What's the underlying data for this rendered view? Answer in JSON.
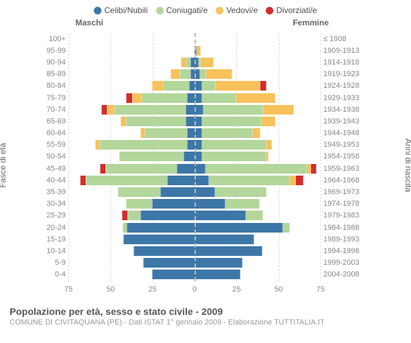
{
  "legend": [
    {
      "label": "Celibi/Nubili",
      "color": "#3d77a8"
    },
    {
      "label": "Coniugati/e",
      "color": "#b3d69b"
    },
    {
      "label": "Vedovi/e",
      "color": "#f7c15b"
    },
    {
      "label": "Divorziati/e",
      "color": "#d22d2d"
    }
  ],
  "headers": {
    "male": "Maschi",
    "female": "Femmine"
  },
  "axis_left_label": "Fasce di età",
  "axis_right_label": "Anni di nascita",
  "x_axis": {
    "max": 75,
    "ticks": [
      0,
      25,
      50,
      75
    ]
  },
  "footer": {
    "title": "Popolazione per età, sesso e stato civile - 2009",
    "subtitle": "COMUNE DI CIVITAQUANA (PE) - Dati ISTAT 1° gennaio 2009 - Elaborazione TUTTITALIA.IT"
  },
  "colors": {
    "celibi": "#3d77a8",
    "coniugati": "#b3d69b",
    "vedovi": "#f7c15b",
    "divorziati": "#d22d2d",
    "grid": "#dddddd",
    "center_line": "#bbbbbb",
    "text": "#888888"
  },
  "rows": [
    {
      "age": "100+",
      "birth": "≤ 1908",
      "m": {
        "cel": 0,
        "con": 0,
        "ved": 0,
        "div": 0
      },
      "f": {
        "cel": 0,
        "con": 0,
        "ved": 0,
        "div": 0
      }
    },
    {
      "age": "95-99",
      "birth": "1909-1913",
      "m": {
        "cel": 0,
        "con": 0,
        "ved": 0,
        "div": 0
      },
      "f": {
        "cel": 1,
        "con": 0,
        "ved": 2,
        "div": 0
      }
    },
    {
      "age": "90-94",
      "birth": "1914-1918",
      "m": {
        "cel": 2,
        "con": 2,
        "ved": 3,
        "div": 0
      },
      "f": {
        "cel": 2,
        "con": 1,
        "ved": 7,
        "div": 0
      }
    },
    {
      "age": "85-89",
      "birth": "1919-1923",
      "m": {
        "cel": 2,
        "con": 6,
        "ved": 5,
        "div": 0
      },
      "f": {
        "cel": 3,
        "con": 3,
        "ved": 15,
        "div": 0
      }
    },
    {
      "age": "80-84",
      "birth": "1924-1928",
      "m": {
        "cel": 3,
        "con": 15,
        "ved": 6,
        "div": 0
      },
      "f": {
        "cel": 4,
        "con": 8,
        "ved": 26,
        "div": 3
      }
    },
    {
      "age": "75-79",
      "birth": "1929-1933",
      "m": {
        "cel": 4,
        "con": 27,
        "ved": 5,
        "div": 3
      },
      "f": {
        "cel": 4,
        "con": 20,
        "ved": 23,
        "div": 0
      }
    },
    {
      "age": "70-74",
      "birth": "1934-1938",
      "m": {
        "cel": 5,
        "con": 42,
        "ved": 4,
        "div": 3
      },
      "f": {
        "cel": 5,
        "con": 35,
        "ved": 18,
        "div": 0
      }
    },
    {
      "age": "65-69",
      "birth": "1939-1943",
      "m": {
        "cel": 5,
        "con": 35,
        "ved": 3,
        "div": 0
      },
      "f": {
        "cel": 4,
        "con": 35,
        "ved": 8,
        "div": 0
      }
    },
    {
      "age": "60-64",
      "birth": "1944-1948",
      "m": {
        "cel": 4,
        "con": 25,
        "ved": 2,
        "div": 0
      },
      "f": {
        "cel": 4,
        "con": 30,
        "ved": 4,
        "div": 0
      }
    },
    {
      "age": "55-59",
      "birth": "1949-1953",
      "m": {
        "cel": 4,
        "con": 52,
        "ved": 2,
        "div": 0
      },
      "f": {
        "cel": 4,
        "con": 38,
        "ved": 3,
        "div": 0
      }
    },
    {
      "age": "50-54",
      "birth": "1954-1958",
      "m": {
        "cel": 6,
        "con": 38,
        "ved": 0,
        "div": 0
      },
      "f": {
        "cel": 4,
        "con": 38,
        "ved": 1,
        "div": 0
      }
    },
    {
      "age": "45-49",
      "birth": "1959-1963",
      "m": {
        "cel": 10,
        "con": 42,
        "ved": 0,
        "div": 3
      },
      "f": {
        "cel": 6,
        "con": 60,
        "ved": 2,
        "div": 3
      }
    },
    {
      "age": "40-44",
      "birth": "1964-1968",
      "m": {
        "cel": 16,
        "con": 48,
        "ved": 0,
        "div": 3
      },
      "f": {
        "cel": 8,
        "con": 48,
        "ved": 3,
        "div": 4
      }
    },
    {
      "age": "35-39",
      "birth": "1969-1973",
      "m": {
        "cel": 20,
        "con": 25,
        "ved": 0,
        "div": 0
      },
      "f": {
        "cel": 12,
        "con": 30,
        "ved": 0,
        "div": 0
      }
    },
    {
      "age": "30-34",
      "birth": "1974-1978",
      "m": {
        "cel": 25,
        "con": 15,
        "ved": 0,
        "div": 0
      },
      "f": {
        "cel": 18,
        "con": 20,
        "ved": 0,
        "div": 0
      }
    },
    {
      "age": "25-29",
      "birth": "1979-1983",
      "m": {
        "cel": 32,
        "con": 7,
        "ved": 0,
        "div": 3
      },
      "f": {
        "cel": 30,
        "con": 10,
        "ved": 0,
        "div": 0
      }
    },
    {
      "age": "20-24",
      "birth": "1984-1988",
      "m": {
        "cel": 40,
        "con": 2,
        "ved": 0,
        "div": 0
      },
      "f": {
        "cel": 52,
        "con": 4,
        "ved": 0,
        "div": 0
      }
    },
    {
      "age": "15-19",
      "birth": "1989-1993",
      "m": {
        "cel": 42,
        "con": 0,
        "ved": 0,
        "div": 0
      },
      "f": {
        "cel": 35,
        "con": 0,
        "ved": 0,
        "div": 0
      }
    },
    {
      "age": "10-14",
      "birth": "1994-1998",
      "m": {
        "cel": 36,
        "con": 0,
        "ved": 0,
        "div": 0
      },
      "f": {
        "cel": 40,
        "con": 0,
        "ved": 0,
        "div": 0
      }
    },
    {
      "age": "5-9",
      "birth": "1999-2003",
      "m": {
        "cel": 30,
        "con": 0,
        "ved": 0,
        "div": 0
      },
      "f": {
        "cel": 28,
        "con": 0,
        "ved": 0,
        "div": 0
      }
    },
    {
      "age": "0-4",
      "birth": "2004-2008",
      "m": {
        "cel": 25,
        "con": 0,
        "ved": 0,
        "div": 0
      },
      "f": {
        "cel": 27,
        "con": 0,
        "ved": 0,
        "div": 0
      }
    }
  ]
}
